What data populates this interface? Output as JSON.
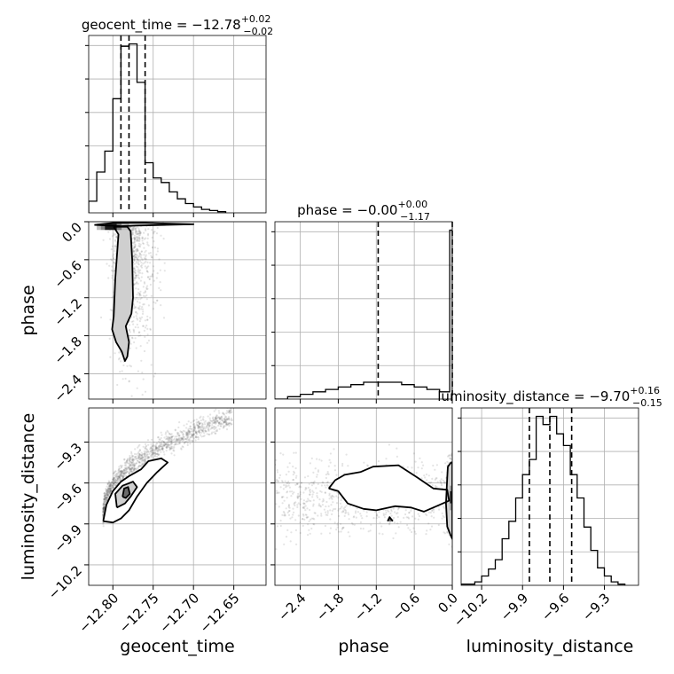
{
  "chart_data": {
    "type": "corner",
    "parameters": [
      "geocent_time",
      "phase",
      "luminosity_distance"
    ],
    "titles": [
      {
        "name": "geocent_time",
        "median": "−12.78",
        "plus": "+0.02",
        "minus": "−0.02"
      },
      {
        "name": "phase",
        "median": "−0.00",
        "plus": "+0.00",
        "minus": "−1.17"
      },
      {
        "name": "luminosity_distance",
        "median": "−9.70",
        "plus": "+0.16",
        "minus": "−0.15"
      }
    ],
    "axes": {
      "geocent_time": {
        "range": [
          -12.83,
          -12.61
        ],
        "ticks": [
          -12.8,
          -12.75,
          -12.7,
          -12.65
        ],
        "tick_labels": [
          "−12.80",
          "−12.75",
          "−12.70",
          "−12.65"
        ]
      },
      "phase": {
        "range": [
          -2.8,
          0.0
        ],
        "ticks": [
          -2.4,
          -1.8,
          -1.2,
          -0.6,
          0.0
        ],
        "tick_labels": [
          "−2.4",
          "−1.8",
          "−1.2",
          "−0.6",
          "0.0"
        ]
      },
      "luminosity_distance": {
        "range": [
          -10.35,
          -9.05
        ],
        "ticks": [
          -10.2,
          -9.9,
          -9.6,
          -9.3
        ],
        "tick_labels": [
          "−10.2",
          "−9.9",
          "−9.6",
          "−9.3"
        ]
      }
    },
    "quantile_lines": {
      "geocent_time": [
        -12.79,
        -12.78,
        -12.76
      ],
      "phase": [
        -1.17,
        0.0
      ],
      "luminosity_distance": [
        -9.85,
        -9.7,
        -9.54
      ]
    },
    "histograms": {
      "geocent_time": {
        "bin_edges": [
          -12.83,
          -12.82,
          -12.81,
          -12.8,
          -12.79,
          -12.78,
          -12.77,
          -12.76,
          -12.75,
          -12.74,
          -12.73,
          -12.72,
          -12.71,
          -12.7,
          -12.69,
          -12.68,
          -12.67,
          -12.66
        ],
        "counts": [
          10,
          35,
          53,
          98,
          143,
          145,
          112,
          43,
          30,
          26,
          18,
          12,
          8,
          5,
          3,
          2,
          1
        ]
      },
      "phase": {
        "bin_edges": [
          -2.8,
          -2.6,
          -2.4,
          -2.2,
          -2.0,
          -1.8,
          -1.6,
          -1.4,
          -1.2,
          -1.0,
          -0.8,
          -0.6,
          -0.4,
          -0.2,
          -0.04,
          0.0
        ],
        "counts": [
          0,
          1,
          2,
          3,
          4,
          5,
          6,
          7,
          7,
          7,
          6,
          5,
          4,
          3,
          70
        ]
      },
      "luminosity_distance": {
        "bin_edges": [
          -10.35,
          -10.25,
          -10.2,
          -10.15,
          -10.1,
          -10.05,
          -10.0,
          -9.95,
          -9.9,
          -9.85,
          -9.8,
          -9.75,
          -9.7,
          -9.65,
          -9.6,
          -9.55,
          -9.5,
          -9.45,
          -9.4,
          -9.35,
          -9.3,
          -9.25,
          -9.2,
          -9.15
        ],
        "counts": [
          1,
          3,
          8,
          14,
          22,
          40,
          55,
          75,
          95,
          108,
          145,
          138,
          145,
          130,
          120,
          95,
          75,
          50,
          30,
          15,
          8,
          3,
          1
        ]
      }
    },
    "contours": {
      "geocent_time_vs_phase": [
        [
          [
            -12.823,
            -0.05
          ],
          [
            -12.8,
            -0.02
          ],
          [
            -12.76,
            -0.02
          ],
          [
            -12.7,
            -0.04
          ],
          [
            -12.77,
            -0.06
          ],
          [
            -12.79,
            -0.07
          ],
          [
            -12.823,
            -0.05
          ]
        ],
        [
          [
            -12.799,
            -0.08
          ],
          [
            -12.793,
            -0.2
          ],
          [
            -12.797,
            -0.9
          ],
          [
            -12.799,
            -1.5
          ],
          [
            -12.801,
            -1.7
          ],
          [
            -12.796,
            -1.9
          ],
          [
            -12.789,
            -2.05
          ],
          [
            -12.785,
            -2.2
          ],
          [
            -12.782,
            -2.13
          ],
          [
            -12.78,
            -1.9
          ],
          [
            -12.784,
            -1.65
          ],
          [
            -12.777,
            -1.45
          ],
          [
            -12.775,
            -1.2
          ],
          [
            -12.776,
            -0.6
          ],
          [
            -12.778,
            -0.15
          ],
          [
            -12.782,
            -0.08
          ],
          [
            -12.799,
            -0.08
          ]
        ]
      ],
      "geocent_time_vs_luminosity_distance": [
        [
          [
            -12.812,
            -9.88
          ],
          [
            -12.808,
            -9.76
          ],
          [
            -12.8,
            -9.66
          ],
          [
            -12.79,
            -9.59
          ],
          [
            -12.78,
            -9.55
          ],
          [
            -12.765,
            -9.5
          ],
          [
            -12.756,
            -9.44
          ],
          [
            -12.74,
            -9.42
          ],
          [
            -12.732,
            -9.45
          ],
          [
            -12.745,
            -9.52
          ],
          [
            -12.758,
            -9.6
          ],
          [
            -12.77,
            -9.7
          ],
          [
            -12.78,
            -9.8
          ],
          [
            -12.79,
            -9.86
          ],
          [
            -12.8,
            -9.89
          ],
          [
            -12.812,
            -9.88
          ]
        ],
        [
          [
            -12.795,
            -9.78
          ],
          [
            -12.797,
            -9.68
          ],
          [
            -12.788,
            -9.62
          ],
          [
            -12.775,
            -9.59
          ],
          [
            -12.77,
            -9.63
          ],
          [
            -12.778,
            -9.7
          ],
          [
            -12.785,
            -9.75
          ],
          [
            -12.795,
            -9.78
          ]
        ],
        [
          [
            -12.788,
            -9.7
          ],
          [
            -12.786,
            -9.64
          ],
          [
            -12.781,
            -9.63
          ],
          [
            -12.779,
            -9.68
          ],
          [
            -12.784,
            -9.71
          ],
          [
            -12.788,
            -9.7
          ]
        ]
      ],
      "phase_vs_luminosity_distance": [
        [
          [
            -1.95,
            -9.64
          ],
          [
            -1.85,
            -9.58
          ],
          [
            -1.7,
            -9.54
          ],
          [
            -1.45,
            -9.52
          ],
          [
            -1.25,
            -9.48
          ],
          [
            -0.85,
            -9.47
          ],
          [
            -0.55,
            -9.56
          ],
          [
            -0.3,
            -9.64
          ],
          [
            -0.08,
            -9.65
          ],
          [
            -0.05,
            -9.73
          ],
          [
            -0.25,
            -9.77
          ],
          [
            -0.45,
            -9.81
          ],
          [
            -0.65,
            -9.78
          ],
          [
            -0.9,
            -9.77
          ],
          [
            -1.2,
            -9.8
          ],
          [
            -1.4,
            -9.79
          ],
          [
            -1.65,
            -9.75
          ],
          [
            -1.8,
            -9.66
          ],
          [
            -1.95,
            -9.64
          ]
        ],
        [
          [
            -0.07,
            -9.48
          ],
          [
            -0.02,
            -9.45
          ],
          [
            0.0,
            -9.45
          ],
          [
            0.0,
            -10.01
          ],
          [
            -0.03,
            -9.98
          ],
          [
            -0.08,
            -9.92
          ],
          [
            -0.1,
            -9.75
          ],
          [
            -0.08,
            -9.56
          ],
          [
            -0.07,
            -9.48
          ]
        ],
        [
          [
            -1.02,
            -9.88
          ],
          [
            -0.99,
            -9.85
          ],
          [
            -0.94,
            -9.88
          ]
        ]
      ]
    }
  }
}
